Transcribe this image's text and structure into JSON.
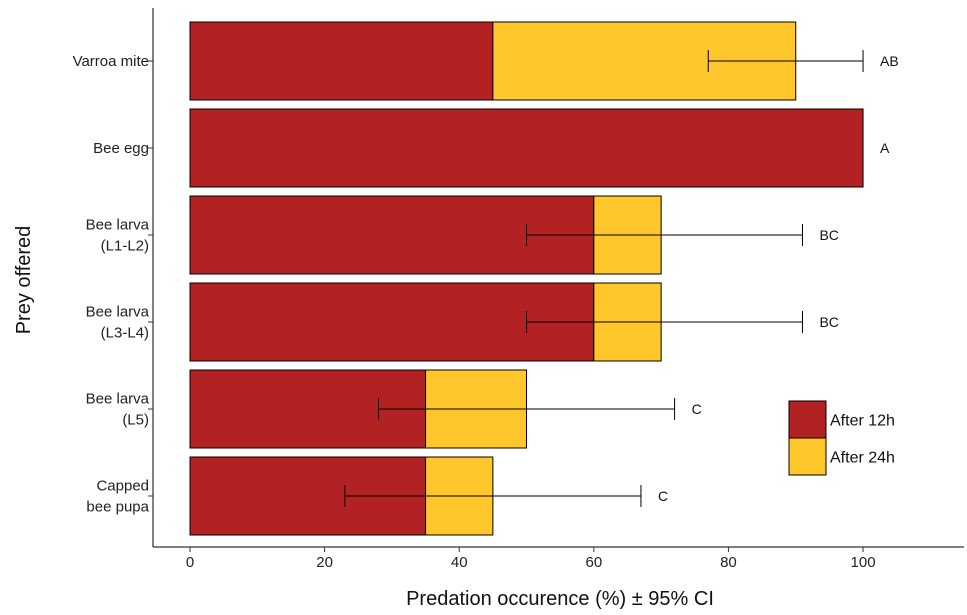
{
  "chart_data": {
    "type": "bar",
    "orientation": "horizontal",
    "stacked": true,
    "categories": [
      [
        "Varroa mite"
      ],
      [
        "Bee egg"
      ],
      [
        "Bee larva",
        "(L1-L2)"
      ],
      [
        "Bee larva",
        "(L3-L4)"
      ],
      [
        "Bee larva",
        "(L5)"
      ],
      [
        "Capped",
        "bee pupa"
      ]
    ],
    "series": [
      {
        "name": "After 12h",
        "color": "#b22222",
        "values": [
          45,
          100,
          60,
          60,
          35,
          35
        ]
      },
      {
        "name": "After 24h",
        "color": "#ffc72c",
        "values": [
          45,
          0,
          10,
          10,
          15,
          10
        ]
      }
    ],
    "error_bars": [
      {
        "low": 77,
        "high": 100
      },
      null,
      {
        "low": 50,
        "high": 91
      },
      {
        "low": 50,
        "high": 91
      },
      {
        "low": 28,
        "high": 72
      },
      {
        "low": 23,
        "high": 67
      }
    ],
    "annotations": [
      "AB",
      "A",
      "BC",
      "BC",
      "C",
      "C"
    ],
    "xlabel": "Predation occurence (%) ± 95% CI",
    "ylabel": "Prey offered",
    "xticks": [
      0,
      20,
      40,
      60,
      80,
      100
    ],
    "xlim": [
      -5.5,
      115
    ],
    "grid": false,
    "legend_position": "bottom-right"
  }
}
